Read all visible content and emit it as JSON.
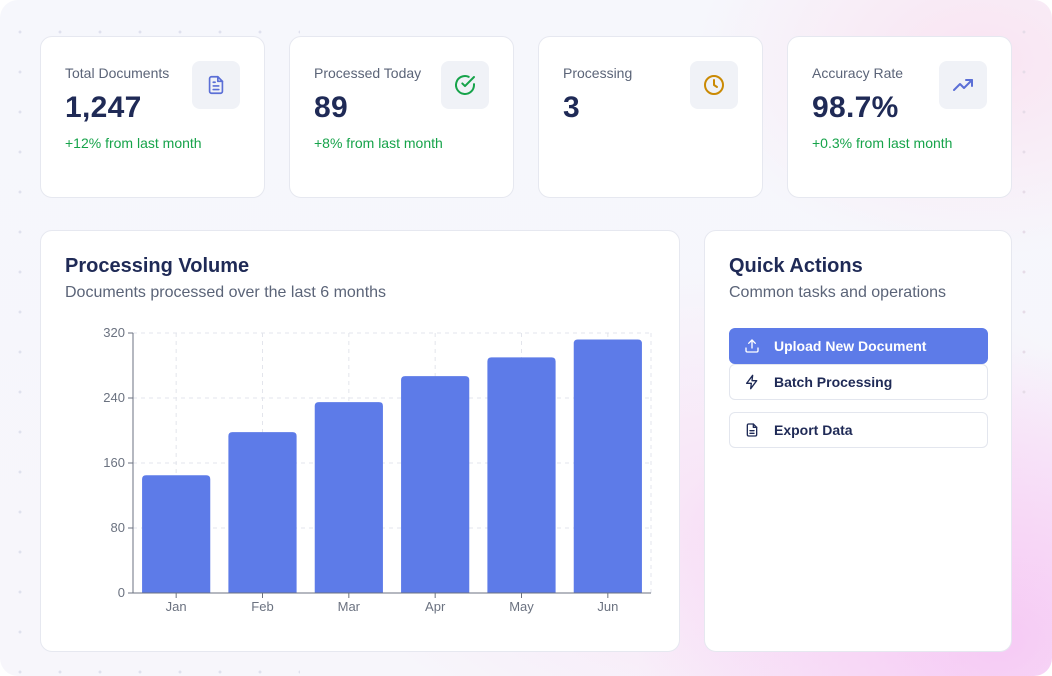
{
  "stats": [
    {
      "label": "Total Documents",
      "value": "1,247",
      "delta": "+12% from last month",
      "icon": "document-icon",
      "icon_color": "#5b6fd6"
    },
    {
      "label": "Processed Today",
      "value": "89",
      "delta": "+8% from last month",
      "icon": "check-circle-icon",
      "icon_color": "#16a34a"
    },
    {
      "label": "Processing",
      "value": "3",
      "delta": "",
      "icon": "clock-icon",
      "icon_color": "#ca8a04"
    },
    {
      "label": "Accuracy Rate",
      "value": "98.7%",
      "delta": "+0.3% from last month",
      "icon": "trending-up-icon",
      "icon_color": "#5b6fd6"
    }
  ],
  "volume_panel": {
    "title": "Processing Volume",
    "subtitle": "Documents processed over the last 6 months"
  },
  "chart_data": {
    "type": "bar",
    "categories": [
      "Jan",
      "Feb",
      "Mar",
      "Apr",
      "May",
      "Jun"
    ],
    "values": [
      145,
      198,
      235,
      267,
      290,
      312
    ],
    "yticks": [
      0,
      80,
      160,
      240,
      320
    ],
    "ylim": [
      0,
      320
    ],
    "grid": true,
    "bar_color": "#5d7be8",
    "title": "",
    "xlabel": "",
    "ylabel": ""
  },
  "quick_actions": {
    "title": "Quick Actions",
    "subtitle": "Common tasks and operations",
    "items": [
      {
        "label": "Upload New Document",
        "icon": "upload-icon"
      },
      {
        "label": "Batch Processing",
        "icon": "lightning-icon"
      },
      {
        "label": "Export Data",
        "icon": "file-text-icon"
      }
    ]
  },
  "colors": {
    "accent": "#5d7be8",
    "heading": "#1f2a56",
    "positive": "#16a34a"
  }
}
